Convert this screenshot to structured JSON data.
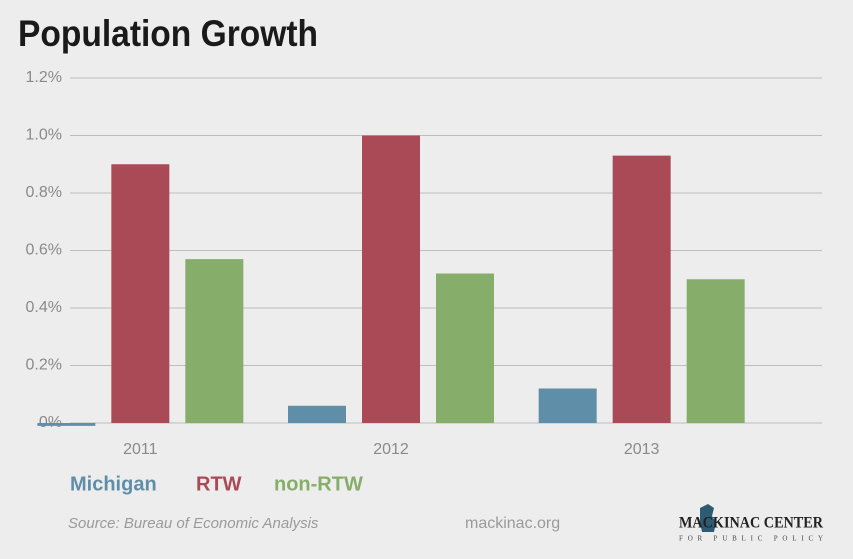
{
  "chart_data": {
    "type": "bar",
    "title": "Population Growth",
    "categories": [
      "2011",
      "2012",
      "2013"
    ],
    "series": [
      {
        "name": "Michigan",
        "color": "#5f8fa8",
        "values": [
          -0.01,
          0.06,
          0.12
        ]
      },
      {
        "name": "RTW",
        "color": "#ab4a57",
        "values": [
          0.9,
          1.0,
          0.93
        ]
      },
      {
        "name": "non-RTW",
        "color": "#86ad6a",
        "values": [
          0.57,
          0.52,
          0.5
        ]
      }
    ],
    "ylim": [
      0,
      1.2
    ],
    "yticks": [
      {
        "value": 0,
        "label": "0%"
      },
      {
        "value": 0.2,
        "label": "0.2%"
      },
      {
        "value": 0.4,
        "label": "0.4%"
      },
      {
        "value": 0.6,
        "label": "0.6%"
      },
      {
        "value": 0.8,
        "label": "0.8%"
      },
      {
        "value": 1.0,
        "label": "1.0%"
      },
      {
        "value": 1.2,
        "label": "1.2%"
      }
    ],
    "grid": true,
    "source": "Source: Bureau of Economic Analysis",
    "site": "mackinac.org",
    "logo": {
      "name": "MACKINAC CENTER",
      "tagline": "FOR PUBLIC POLICY"
    }
  }
}
